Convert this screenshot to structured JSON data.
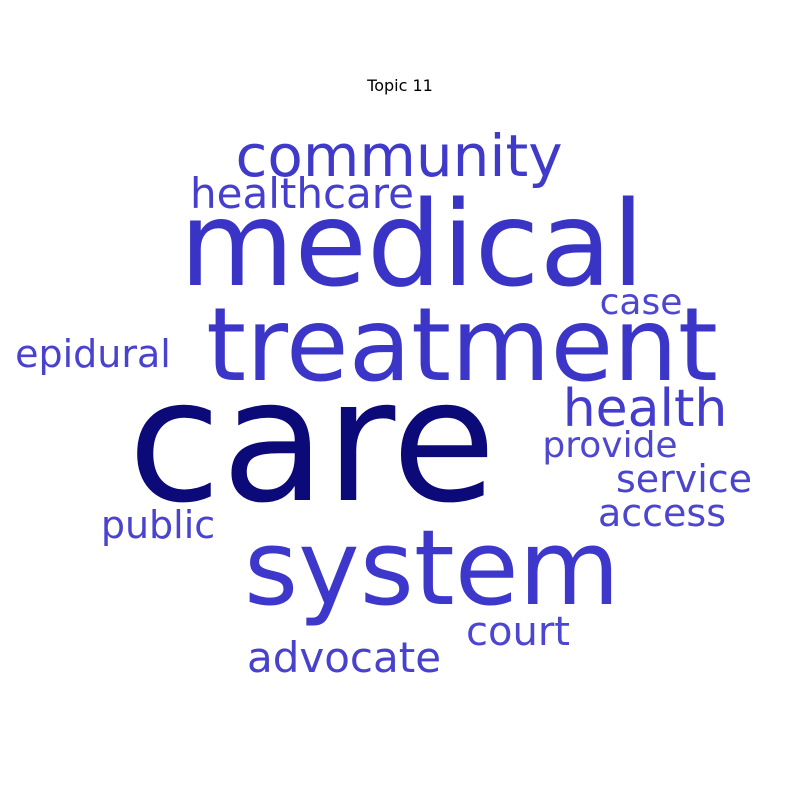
{
  "chart_data": {
    "type": "wordcloud",
    "title": "Topic 11",
    "words": [
      {
        "text": "care",
        "weight": 1.0,
        "color": "#0b0a78"
      },
      {
        "text": "medical",
        "weight": 0.82,
        "color": "#3a34c6"
      },
      {
        "text": "system",
        "weight": 0.72,
        "color": "#3e37cb"
      },
      {
        "text": "treatment",
        "weight": 0.7,
        "color": "#3c36c8"
      },
      {
        "text": "community",
        "weight": 0.42,
        "color": "#403acb"
      },
      {
        "text": "health",
        "weight": 0.36,
        "color": "#433ccd"
      },
      {
        "text": "healthcare",
        "weight": 0.3,
        "color": "#463fce"
      },
      {
        "text": "advocate",
        "weight": 0.3,
        "color": "#4841ce"
      },
      {
        "text": "epidural",
        "weight": 0.28,
        "color": "#4942cf"
      },
      {
        "text": "public",
        "weight": 0.28,
        "color": "#4a43cf"
      },
      {
        "text": "service",
        "weight": 0.28,
        "color": "#4a44cf"
      },
      {
        "text": "access",
        "weight": 0.28,
        "color": "#4b45cf"
      },
      {
        "text": "court",
        "weight": 0.28,
        "color": "#4c46d0"
      },
      {
        "text": "case",
        "weight": 0.25,
        "color": "#4d47d0"
      },
      {
        "text": "provide",
        "weight": 0.26,
        "color": "#4e48d0"
      }
    ]
  }
}
